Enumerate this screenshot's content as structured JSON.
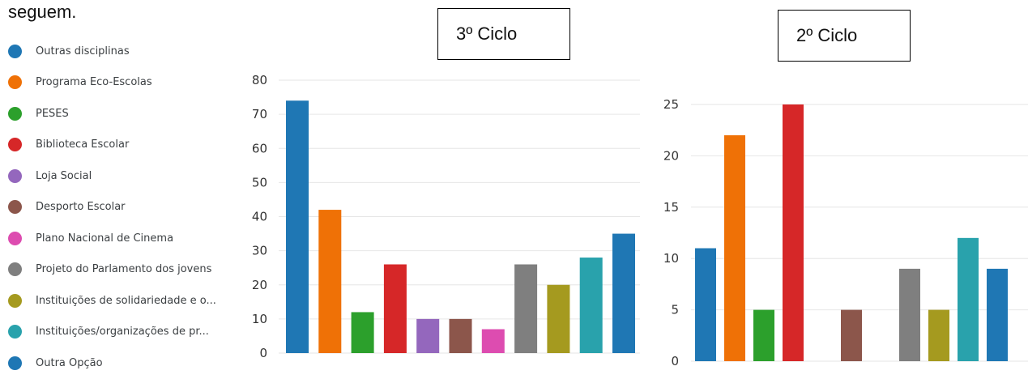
{
  "heading": "seguem.",
  "legend": [
    {
      "label": "Outras disciplinas",
      "color": "#1f77b4"
    },
    {
      "label": "Programa Eco-Escolas",
      "color": "#ef7106"
    },
    {
      "label": "PESES",
      "color": "#2ca02c"
    },
    {
      "label": "Biblioteca Escolar",
      "color": "#d62728"
    },
    {
      "label": "Loja Social",
      "color": "#9467bd"
    },
    {
      "label": "Desporto Escolar",
      "color": "#8c564b"
    },
    {
      "label": "Plano Nacional de Cinema",
      "color": "#dd4cb0"
    },
    {
      "label": "Projeto do Parlamento dos jovens",
      "color": "#7f7f7f"
    },
    {
      "label": "Instituições de solidariedade e o...",
      "color": "#a59a1f"
    },
    {
      "label": "Instituições/organizações de pr...",
      "color": "#29a2ac"
    },
    {
      "label": "Outra Opção",
      "color": "#1f77b4"
    }
  ],
  "chart_data": [
    {
      "type": "bar",
      "title": "3º Ciclo",
      "categories": [
        "Outras disciplinas",
        "Programa Eco-Escolas",
        "PESES",
        "Biblioteca Escolar",
        "Loja Social",
        "Desporto Escolar",
        "Plano Nacional de Cinema",
        "Projeto do Parlamento dos jovens",
        "Instituições de solidariedade e o...",
        "Instituições/organizações de pr...",
        "Outra Opção"
      ],
      "values": [
        74,
        42,
        12,
        26,
        10,
        10,
        7,
        26,
        20,
        28,
        35
      ],
      "ylim": [
        0,
        80
      ],
      "yticks": [
        "0",
        "10",
        "20",
        "30",
        "40",
        "50",
        "60",
        "70",
        "80"
      ],
      "grid": true
    },
    {
      "type": "bar",
      "title": "2º Ciclo",
      "categories": [
        "Outras disciplinas",
        "Programa Eco-Escolas",
        "PESES",
        "Biblioteca Escolar",
        "Loja Social",
        "Desporto Escolar",
        "Plano Nacional de Cinema",
        "Projeto do Parlamento dos jovens",
        "Instituições de solidariedade e o...",
        "Instituições/organizações de pr...",
        "Outra Opção"
      ],
      "values": [
        11,
        22,
        5,
        25,
        0,
        5,
        0,
        9,
        5,
        12,
        9
      ],
      "ylim": [
        0,
        25
      ],
      "yticks": [
        "0",
        "5",
        "10",
        "15",
        "20",
        "25"
      ],
      "grid": true
    }
  ]
}
